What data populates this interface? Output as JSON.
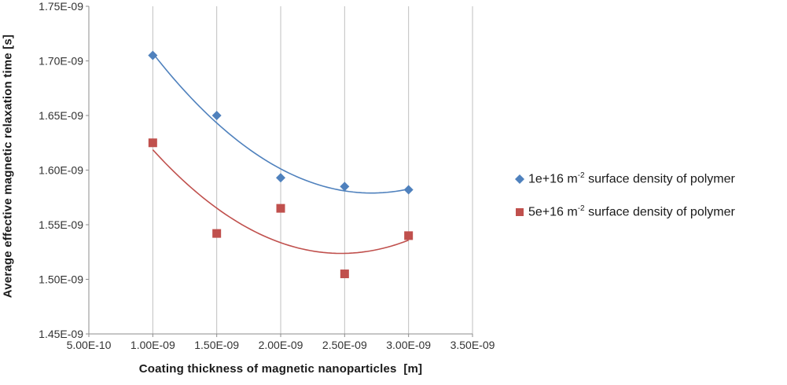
{
  "chart_data": {
    "type": "scatter",
    "title": "",
    "xlabel": "Coating thickness of magnetic nanoparticles  [m]",
    "ylabel": "Average effective magnetic relaxation time [s]",
    "xlim": [
      5e-10,
      3.5e-09
    ],
    "ylim": [
      1.45e-09,
      1.75e-09
    ],
    "x_ticks": [
      "5.00E-10",
      "1.00E-09",
      "1.50E-09",
      "2.00E-09",
      "2.50E-09",
      "3.00E-09",
      "3.50E-09"
    ],
    "x_tick_values": [
      5e-10,
      1e-09,
      1.5e-09,
      2e-09,
      2.5e-09,
      3e-09,
      3.5e-09
    ],
    "y_ticks": [
      "1.45E-09",
      "1.50E-09",
      "1.55E-09",
      "1.60E-09",
      "1.65E-09",
      "1.70E-09",
      "1.75E-09"
    ],
    "y_tick_values": [
      1.45e-09,
      1.5e-09,
      1.55e-09,
      1.6e-09,
      1.65e-09,
      1.7e-09,
      1.75e-09
    ],
    "grid": "vertical-major-only",
    "legend_position": "right",
    "x": [
      1e-09,
      1.5e-09,
      2e-09,
      2.5e-09,
      3e-09
    ],
    "series": [
      {
        "name": "1e+16 m-2 surface density of polymer",
        "label_prefix": "1e+16 m",
        "label_sup": "-2",
        "label_suffix": " surface density of polymer",
        "marker": "diamond",
        "color": "#4F81BD",
        "values": [
          1.705e-09,
          1.65e-09,
          1.593e-09,
          1.585e-09,
          1.582e-09
        ],
        "trendline": "polynomial-order-2"
      },
      {
        "name": "5e+16 m-2 surface density of polymer",
        "label_prefix": "5e+16 m",
        "label_sup": "-2",
        "label_suffix": " surface density of polymer",
        "marker": "square",
        "color": "#C0504D",
        "values": [
          1.625e-09,
          1.542e-09,
          1.565e-09,
          1.505e-09,
          1.54e-09
        ],
        "trendline": "polynomial-order-2"
      }
    ],
    "colors": {
      "gridline": "#BFBFBF",
      "axis": "#8C8C8C",
      "tick_text": "#333333"
    }
  }
}
